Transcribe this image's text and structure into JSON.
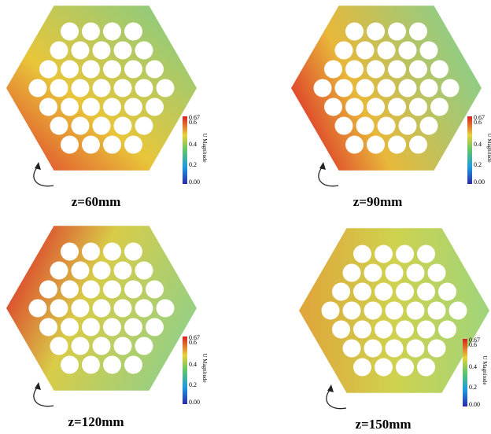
{
  "panels": [
    {
      "caption": "z=60mm",
      "colorbar": {
        "title": "U Magnitude",
        "ticks": [
          "0.67",
          "0.6",
          "0.4",
          "0.2",
          "0.00"
        ]
      }
    },
    {
      "caption": "z=90mm",
      "colorbar": {
        "title": "U Magnitude",
        "ticks": [
          "0.67",
          "0.6",
          "0.4",
          "0.2",
          "0.00"
        ]
      }
    },
    {
      "caption": "z=120mm",
      "colorbar": {
        "title": "U Magnitude",
        "ticks": [
          "0.67",
          "0.6",
          "0.4",
          "0.2",
          "0.00"
        ]
      }
    },
    {
      "caption": "z=150mm",
      "colorbar": {
        "title": "U Magnitude",
        "ticks": [
          "0.67",
          "0.6",
          "0.4",
          "0.2",
          "0.00"
        ]
      }
    }
  ]
}
